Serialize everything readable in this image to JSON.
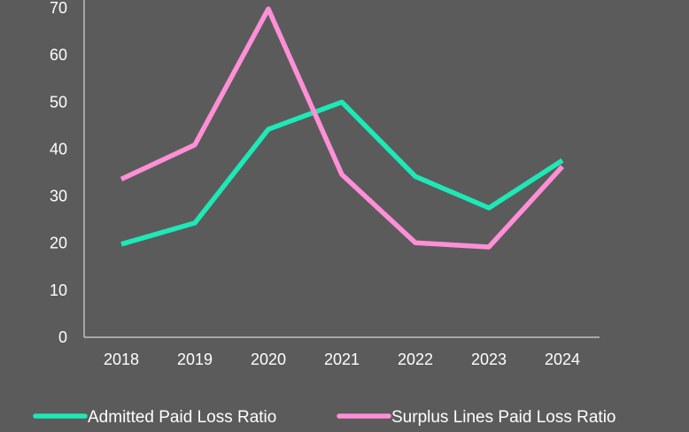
{
  "chart_data": {
    "type": "line",
    "categories": [
      "2018",
      "2019",
      "2020",
      "2021",
      "2022",
      "2023",
      "2024"
    ],
    "series": [
      {
        "name": "Admitted Paid Loss Ratio",
        "color": "#1de9b6",
        "values": [
          19.8,
          24.3,
          44.2,
          50.0,
          34.2,
          27.5,
          37.6
        ]
      },
      {
        "name": "Surplus Lines Paid Loss Ratio",
        "color": "#ff8fd6",
        "values": [
          33.6,
          40.9,
          69.8,
          34.6,
          20.1,
          19.2,
          36.3
        ]
      }
    ],
    "ylim": [
      0,
      70
    ],
    "yticks": [
      "0",
      "10",
      "20",
      "30",
      "40",
      "50",
      "60",
      "70"
    ],
    "grid": false,
    "legend_position": "bottom",
    "title": "",
    "xlabel": "",
    "ylabel": ""
  }
}
